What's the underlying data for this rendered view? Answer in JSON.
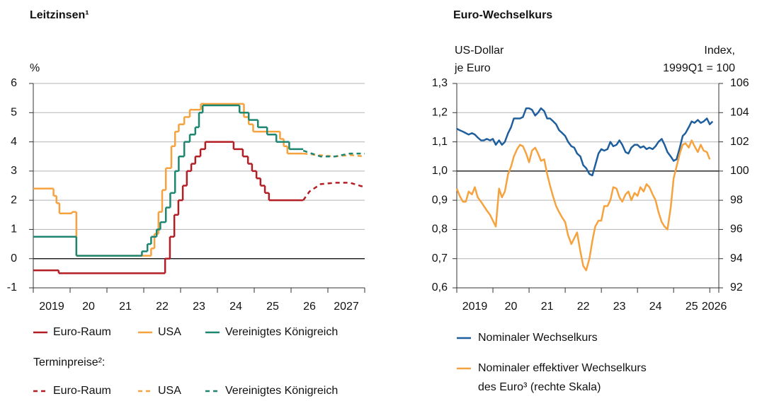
{
  "chart_data": [
    {
      "type": "line",
      "title": "Leitzinsen¹",
      "ylabel": "%",
      "xlim": [
        2019,
        2028
      ],
      "xticks": [
        2019,
        {
          "value": 2020,
          "label": "20"
        },
        {
          "value": 2021,
          "label": "21"
        },
        {
          "value": 2022,
          "label": "22"
        },
        {
          "value": 2023,
          "label": "23"
        },
        {
          "value": 2024,
          "label": "24"
        },
        {
          "value": 2025,
          "label": "25"
        },
        {
          "value": 2026,
          "label": "26"
        },
        2027
      ],
      "ylim": [
        -1,
        6
      ],
      "yticks": [
        -1,
        0,
        1,
        2,
        3,
        4,
        5,
        6
      ],
      "grid": true,
      "hline": 0,
      "legend_note": "Terminpreise²:",
      "series": [
        {
          "name": "Euro-Raum",
          "color": "#b31e24",
          "step": true,
          "x": [
            2019,
            2019.69,
            2022.58,
            2022.71,
            2022.83,
            2022.94,
            2023.06,
            2023.17,
            2023.29,
            2023.4,
            2023.54,
            2023.67,
            2024.44,
            2024.69,
            2024.83,
            2024.94,
            2025.06,
            2025.17,
            2025.29,
            2025.4,
            2026.33
          ],
          "values": [
            -0.4,
            -0.5,
            0,
            0.75,
            1.5,
            2.0,
            2.5,
            3.0,
            3.25,
            3.5,
            3.75,
            4.0,
            3.75,
            3.5,
            3.25,
            3.0,
            2.75,
            2.5,
            2.25,
            2.0,
            2.0
          ]
        },
        {
          "name": "USA",
          "color": "#f6a23e",
          "step": true,
          "x": [
            2019,
            2019.55,
            2019.63,
            2019.71,
            2020.05,
            2020.17,
            2022.2,
            2022.29,
            2022.4,
            2022.5,
            2022.6,
            2022.75,
            2022.85,
            2022.95,
            2023.1,
            2023.25,
            2023.55,
            2024.72,
            2024.85,
            2024.97,
            2025.7,
            2025.8,
            2025.9,
            2026.33
          ],
          "values": [
            2.4,
            2.15,
            1.9,
            1.55,
            1.6,
            0.1,
            0.35,
            0.85,
            1.6,
            2.35,
            3.1,
            3.85,
            4.35,
            4.6,
            4.85,
            5.1,
            5.3,
            4.85,
            4.6,
            4.35,
            4.1,
            3.85,
            3.6,
            3.6
          ]
        },
        {
          "name": "Vereinigtes Königreich",
          "color": "#1d8670",
          "step": true,
          "x": [
            2019,
            2020.17,
            2021.95,
            2022.1,
            2022.2,
            2022.35,
            2022.45,
            2022.6,
            2022.72,
            2022.85,
            2022.95,
            2023.1,
            2023.25,
            2023.4,
            2023.5,
            2023.6,
            2024.6,
            2024.85,
            2025.1,
            2025.35,
            2025.6,
            2025.95,
            2026.33
          ],
          "values": [
            0.75,
            0.1,
            0.25,
            0.5,
            0.75,
            1.0,
            1.25,
            1.75,
            2.25,
            3.0,
            3.5,
            4.0,
            4.25,
            4.5,
            5.0,
            5.25,
            5.0,
            4.75,
            4.5,
            4.25,
            4.0,
            3.75,
            3.75
          ]
        },
        {
          "name": "Euro-Raum",
          "color": "#b31e24",
          "dash": true,
          "x": [
            2026.33,
            2026.5,
            2026.8,
            2027.2,
            2027.6,
            2028
          ],
          "values": [
            2.0,
            2.3,
            2.55,
            2.6,
            2.6,
            2.45
          ]
        },
        {
          "name": "USA",
          "color": "#f6a23e",
          "dash": true,
          "x": [
            2026.33,
            2026.7,
            2027.2,
            2027.6,
            2028
          ],
          "values": [
            3.6,
            3.55,
            3.5,
            3.55,
            3.5
          ]
        },
        {
          "name": "Vereinigtes Königreich",
          "color": "#1d8670",
          "dash": true,
          "x": [
            2026.33,
            2026.8,
            2027.2,
            2027.6,
            2028
          ],
          "values": [
            3.7,
            3.5,
            3.5,
            3.6,
            3.6
          ]
        }
      ]
    },
    {
      "type": "line",
      "title": "Euro-Wechselkurs",
      "ylabel": [
        "US-Dollar",
        "je Euro"
      ],
      "y2label": [
        "Index,",
        "1999Q1 = 100"
      ],
      "xlim": [
        2019,
        2026.25
      ],
      "xticks": [
        2019,
        {
          "value": 2020,
          "label": "20"
        },
        {
          "value": 2021,
          "label": "21"
        },
        {
          "value": 2022,
          "label": "22"
        },
        {
          "value": 2023,
          "label": "23"
        },
        {
          "value": 2024,
          "label": "24"
        },
        {
          "value": 2025,
          "label": "25"
        },
        2026
      ],
      "ylim": [
        0.6,
        1.3
      ],
      "yticks": [
        {
          "value": 0.6,
          "label": "0,6"
        },
        {
          "value": 0.7,
          "label": "0,7"
        },
        {
          "value": 0.8,
          "label": "0,8"
        },
        {
          "value": 0.9,
          "label": "0,9"
        },
        {
          "value": 1.0,
          "label": "1,0"
        },
        {
          "value": 1.1,
          "label": "1,1"
        },
        {
          "value": 1.2,
          "label": "1,2"
        },
        {
          "value": 1.3,
          "label": "1,3"
        }
      ],
      "y2lim": [
        92,
        106
      ],
      "y2ticks": [
        92,
        94,
        96,
        98,
        100,
        102,
        104,
        106
      ],
      "grid": true,
      "hline": 1.0,
      "x": [
        2019,
        2019.08,
        2019.17,
        2019.25,
        2019.33,
        2019.42,
        2019.5,
        2019.58,
        2019.67,
        2019.75,
        2019.83,
        2019.92,
        2020,
        2020.08,
        2020.17,
        2020.25,
        2020.33,
        2020.42,
        2020.5,
        2020.58,
        2020.67,
        2020.75,
        2020.83,
        2020.92,
        2021,
        2021.08,
        2021.17,
        2021.25,
        2021.33,
        2021.42,
        2021.5,
        2021.58,
        2021.67,
        2021.75,
        2021.83,
        2021.92,
        2022,
        2022.08,
        2022.17,
        2022.25,
        2022.33,
        2022.42,
        2022.5,
        2022.58,
        2022.67,
        2022.75,
        2022.83,
        2022.92,
        2023,
        2023.08,
        2023.17,
        2023.25,
        2023.33,
        2023.42,
        2023.5,
        2023.58,
        2023.67,
        2023.75,
        2023.83,
        2023.92,
        2024,
        2024.08,
        2024.17,
        2024.25,
        2024.33,
        2024.42,
        2024.5,
        2024.58,
        2024.67,
        2024.75,
        2024.83,
        2024.92,
        2025,
        2025.08,
        2025.17,
        2025.25,
        2025.33,
        2025.42,
        2025.5,
        2025.58,
        2025.67,
        2025.75,
        2025.83,
        2025.92,
        2026,
        2026.08
      ],
      "series": [
        {
          "name": [
            "Nominaler Wechselkurs"
          ],
          "color": "#1f5f9d",
          "values": [
            1.145,
            1.14,
            1.135,
            1.13,
            1.125,
            1.13,
            1.125,
            1.115,
            1.105,
            1.105,
            1.11,
            1.105,
            1.11,
            1.09,
            1.105,
            1.09,
            1.1,
            1.13,
            1.15,
            1.18,
            1.18,
            1.18,
            1.185,
            1.215,
            1.215,
            1.21,
            1.19,
            1.2,
            1.215,
            1.205,
            1.18,
            1.18,
            1.17,
            1.16,
            1.14,
            1.13,
            1.12,
            1.1,
            1.085,
            1.08,
            1.06,
            1.05,
            1.02,
            1.01,
            0.99,
            0.985,
            1.02,
            1.06,
            1.075,
            1.07,
            1.075,
            1.1,
            1.085,
            1.09,
            1.105,
            1.09,
            1.065,
            1.06,
            1.08,
            1.09,
            1.09,
            1.08,
            1.085,
            1.075,
            1.08,
            1.075,
            1.085,
            1.1,
            1.11,
            1.09,
            1.065,
            1.05,
            1.035,
            1.04,
            1.08,
            1.12,
            1.13,
            1.15,
            1.17,
            1.165,
            1.175,
            1.165,
            1.17,
            1.18,
            1.16,
            1.17
          ]
        },
        {
          "name": [
            "Nominaler effektiver Wechselkurs",
            "des Euro³ (rechte Skala)"
          ],
          "color": "#f6a23e",
          "axis": "y2",
          "values": [
            98.8,
            98.3,
            97.9,
            97.9,
            98.6,
            98.4,
            98.9,
            98.2,
            97.9,
            97.6,
            97.3,
            97.0,
            96.6,
            96.2,
            98.8,
            98.2,
            98.6,
            99.8,
            100.3,
            101.0,
            101.5,
            101.8,
            101.7,
            101.2,
            100.6,
            101.4,
            101.6,
            101.2,
            100.7,
            100.8,
            99.8,
            99.0,
            98.2,
            97.6,
            97.2,
            96.8,
            96.5,
            95.6,
            95.0,
            95.4,
            95.8,
            94.5,
            93.5,
            93.2,
            94.0,
            95.2,
            96.2,
            96.6,
            96.6,
            97.6,
            97.6,
            98.0,
            98.9,
            98.8,
            98.2,
            97.9,
            98.4,
            98.6,
            98.0,
            98.5,
            98.3,
            98.9,
            98.6,
            99.1,
            98.9,
            98.4,
            98.0,
            97.2,
            96.5,
            96.2,
            96.0,
            97.5,
            99.5,
            100.3,
            101.2,
            101.8,
            101.9,
            101.6,
            102.1,
            101.7,
            101.3,
            101.8,
            101.4,
            101.3,
            100.8,
            null
          ]
        }
      ]
    }
  ]
}
